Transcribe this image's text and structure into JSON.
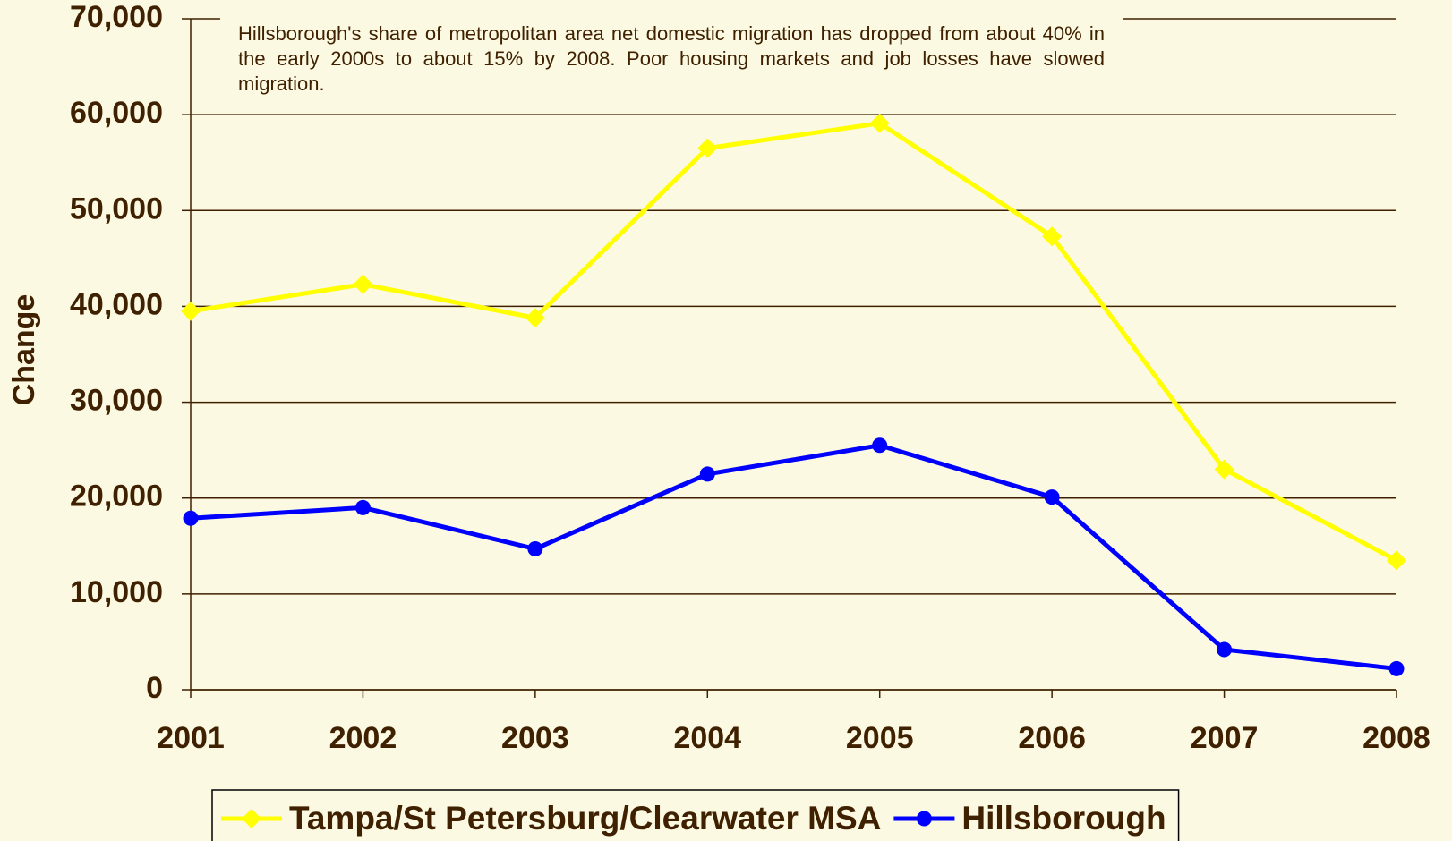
{
  "chart_data": {
    "type": "line",
    "annotation": "Hillsborough's share of metropolitan area net domestic migration has dropped from about 40% in the early 2000s to about 15% by 2008.  Poor housing markets and job losses have slowed migration.",
    "y_label": "Change",
    "categories": [
      "2001",
      "2002",
      "2003",
      "2004",
      "2005",
      "2006",
      "2007",
      "2008"
    ],
    "series": [
      {
        "name": "Tampa/St Petersburg/Clearwater MSA",
        "color": "#ffff00",
        "marker": "diamond",
        "values": [
          39500,
          42300,
          38800,
          56500,
          59100,
          47300,
          23000,
          13500
        ]
      },
      {
        "name": "Hillsborough",
        "color": "#0000ff",
        "marker": "circle",
        "values": [
          17900,
          19000,
          14700,
          22500,
          25500,
          20100,
          4200,
          2200
        ]
      }
    ],
    "ylim": [
      0,
      70000
    ],
    "yticks": [
      {
        "value": 0,
        "label": "0"
      },
      {
        "value": 10000,
        "label": "10,000"
      },
      {
        "value": 20000,
        "label": "20,000"
      },
      {
        "value": 30000,
        "label": "30,000"
      },
      {
        "value": 40000,
        "label": "40,000"
      },
      {
        "value": 50000,
        "label": "50,000"
      },
      {
        "value": 60000,
        "label": "60,000"
      },
      {
        "value": 70000,
        "label": "70,000"
      }
    ],
    "grid": true,
    "legend": "bottom"
  }
}
